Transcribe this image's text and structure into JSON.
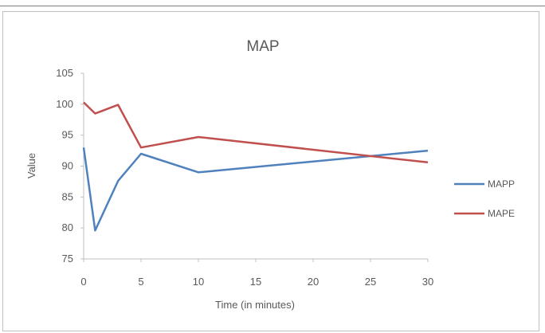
{
  "chart_data": {
    "type": "line",
    "title": "MAP",
    "xlabel": "Time (in minutes)",
    "ylabel": "Value",
    "xlim": [
      0,
      30
    ],
    "ylim": [
      75,
      105
    ],
    "x_ticks": [
      "0",
      "5",
      "10",
      "15",
      "20",
      "25",
      "30"
    ],
    "y_ticks": [
      "105",
      "100",
      "95",
      "90",
      "85",
      "80",
      "75"
    ],
    "grid": false,
    "legend_position": "right",
    "series": [
      {
        "name": "MAPP",
        "color": "#4f81bd",
        "x": [
          0,
          1,
          3,
          5,
          10,
          30
        ],
        "values": [
          93,
          79.6,
          87.6,
          92,
          89,
          92.5
        ]
      },
      {
        "name": "MAPE",
        "color": "#c0504d",
        "x": [
          0,
          1,
          3,
          5,
          10,
          30
        ],
        "values": [
          100.3,
          98.5,
          99.9,
          93,
          94.7,
          90.6
        ]
      }
    ]
  }
}
